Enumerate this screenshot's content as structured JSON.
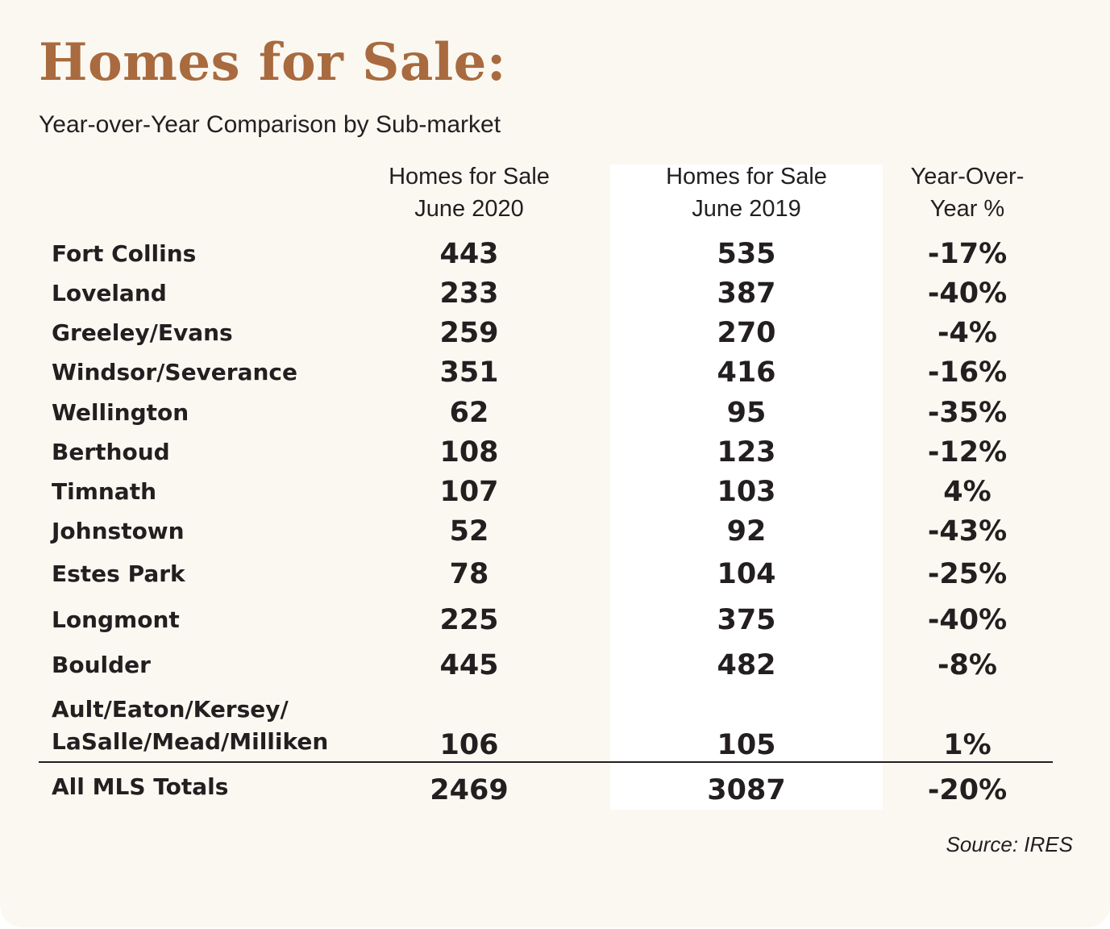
{
  "title": "Homes for Sale:",
  "subtitle": "Year-over-Year Comparison by Sub-market",
  "source": "Source: IRES",
  "headers": {
    "june_2020": [
      "Homes for Sale",
      "June 2020"
    ],
    "june_2019": [
      "Homes for Sale",
      "June 2019"
    ],
    "yoy": [
      "Year-Over-",
      "Year %"
    ]
  },
  "chart_data": {
    "type": "table",
    "title": "Homes for Sale:",
    "subtitle": "Year-over-Year Comparison by Sub-market",
    "columns": [
      "Homes for Sale June 2020",
      "Homes for Sale June 2019",
      "Year-Over-Year %"
    ],
    "rows": [
      {
        "market": "Fort Collins",
        "june_2020": "443",
        "june_2019": "535",
        "yoy": "-17%"
      },
      {
        "market": "Loveland",
        "june_2020": "233",
        "june_2019": "387",
        "yoy": "-40%"
      },
      {
        "market": "Greeley/Evans",
        "june_2020": "259",
        "june_2019": "270",
        "yoy": "-4%"
      },
      {
        "market": "Windsor/Severance",
        "june_2020": "351",
        "june_2019": "416",
        "yoy": "-16%"
      },
      {
        "market": "Wellington",
        "june_2020": "62",
        "june_2019": "95",
        "yoy": "-35%"
      },
      {
        "market": "Berthoud",
        "june_2020": "108",
        "june_2019": "123",
        "yoy": "-12%"
      },
      {
        "market": "Timnath",
        "june_2020": "107",
        "june_2019": "103",
        "yoy": "4%"
      },
      {
        "market": "Johnstown",
        "june_2020": "52",
        "june_2019": "92",
        "yoy": "-43%"
      },
      {
        "market": "Estes Park",
        "june_2020": "78",
        "june_2019": "104",
        "yoy": "-25%"
      },
      {
        "market": "Longmont",
        "june_2020": "225",
        "june_2019": "375",
        "yoy": "-40%"
      },
      {
        "market": "Boulder",
        "june_2020": "445",
        "june_2019": "482",
        "yoy": "-8%"
      },
      {
        "market": "Ault/Eaton/Kersey/\nLaSalle/Mead/Milliken",
        "june_2020": "106",
        "june_2019": "105",
        "yoy": "1%"
      }
    ],
    "totals": {
      "market": "All MLS Totals",
      "june_2020": "2469",
      "june_2019": "3087",
      "yoy": "-20%"
    }
  },
  "colors": {
    "title": "#a86a3e",
    "background": "#fbf8f2",
    "highlight_column": "#ffffff",
    "text": "#231f20"
  }
}
